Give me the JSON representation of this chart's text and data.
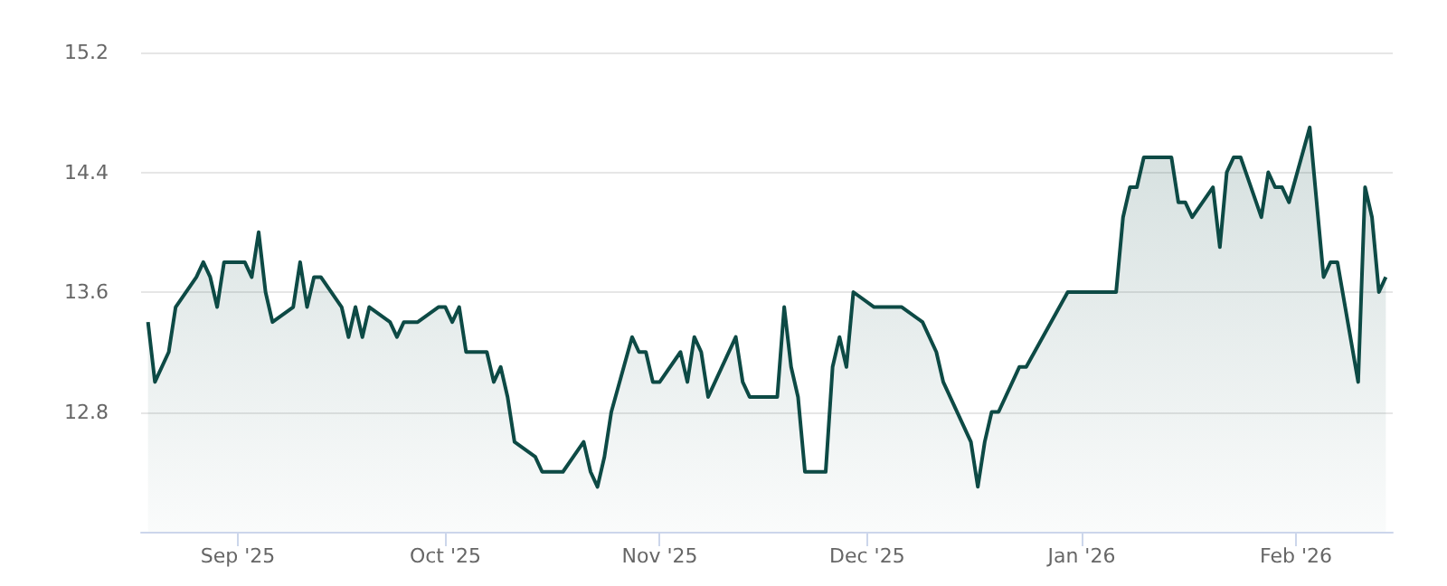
{
  "chart_data": {
    "type": "area",
    "x": [
      "2025-08-19",
      "2025-08-20",
      "2025-08-22",
      "2025-08-23",
      "2025-08-26",
      "2025-08-27",
      "2025-08-28",
      "2025-08-29",
      "2025-08-30",
      "2025-09-02",
      "2025-09-03",
      "2025-09-04",
      "2025-09-05",
      "2025-09-06",
      "2025-09-09",
      "2025-09-10",
      "2025-09-11",
      "2025-09-12",
      "2025-09-13",
      "2025-09-16",
      "2025-09-17",
      "2025-09-18",
      "2025-09-19",
      "2025-09-20",
      "2025-09-23",
      "2025-09-24",
      "2025-09-25",
      "2025-09-27",
      "2025-09-30",
      "2025-10-01",
      "2025-10-02",
      "2025-10-03",
      "2025-10-04",
      "2025-10-07",
      "2025-10-08",
      "2025-10-09",
      "2025-10-10",
      "2025-10-11",
      "2025-10-14",
      "2025-10-15",
      "2025-10-18",
      "2025-10-21",
      "2025-10-22",
      "2025-10-23",
      "2025-10-24",
      "2025-10-25",
      "2025-10-28",
      "2025-10-29",
      "2025-10-30",
      "2025-10-31",
      "2025-11-01",
      "2025-11-04",
      "2025-11-05",
      "2025-11-06",
      "2025-11-07",
      "2025-11-08",
      "2025-11-12",
      "2025-11-13",
      "2025-11-14",
      "2025-11-18",
      "2025-11-19",
      "2025-11-20",
      "2025-11-21",
      "2025-11-22",
      "2025-11-25",
      "2025-11-26",
      "2025-11-27",
      "2025-11-28",
      "2025-11-29",
      "2025-12-02",
      "2025-12-06",
      "2025-12-09",
      "2025-12-11",
      "2025-12-12",
      "2025-12-16",
      "2025-12-17",
      "2025-12-18",
      "2025-12-19",
      "2025-12-20",
      "2025-12-23",
      "2025-12-24",
      "2025-12-30",
      "2026-01-06",
      "2026-01-07",
      "2026-01-08",
      "2026-01-09",
      "2026-01-10",
      "2026-01-14",
      "2026-01-15",
      "2026-01-16",
      "2026-01-17",
      "2026-01-20",
      "2026-01-21",
      "2026-01-22",
      "2026-01-23",
      "2026-01-24",
      "2026-01-27",
      "2026-01-28",
      "2026-01-29",
      "2026-01-30",
      "2026-01-31",
      "2026-02-03",
      "2026-02-05",
      "2026-02-06",
      "2026-02-07",
      "2026-02-10",
      "2026-02-11",
      "2026-02-12",
      "2026-02-13",
      "2026-02-14"
    ],
    "series": [
      {
        "color": "#0d4a45",
        "values": [
          13.4,
          13.0,
          13.2,
          13.5,
          13.7,
          13.8,
          13.7,
          13.5,
          13.8,
          13.8,
          13.7,
          14.0,
          13.6,
          13.4,
          13.5,
          13.8,
          13.5,
          13.7,
          13.7,
          13.5,
          13.3,
          13.5,
          13.3,
          13.5,
          13.4,
          13.3,
          13.4,
          13.4,
          13.5,
          13.5,
          13.4,
          13.5,
          13.2,
          13.2,
          13.0,
          13.1,
          12.9,
          12.6,
          12.5,
          12.4,
          12.4,
          12.6,
          12.4,
          12.3,
          12.5,
          12.8,
          13.3,
          13.2,
          13.2,
          13.0,
          13.0,
          13.2,
          13.0,
          13.3,
          13.2,
          12.9,
          13.3,
          13.0,
          12.9,
          12.9,
          13.5,
          13.1,
          12.9,
          12.4,
          12.4,
          13.1,
          13.3,
          13.1,
          13.6,
          13.5,
          13.5,
          13.4,
          13.2,
          13.0,
          12.6,
          12.3,
          12.6,
          12.8,
          12.8,
          13.1,
          13.1,
          13.6,
          13.6,
          14.1,
          14.3,
          14.3,
          14.5,
          14.5,
          14.2,
          14.2,
          14.1,
          14.3,
          13.9,
          14.4,
          14.5,
          14.5,
          14.1,
          14.4,
          14.3,
          14.3,
          14.2,
          14.7,
          13.7,
          13.8,
          13.8,
          13.0,
          14.3,
          14.1,
          13.6,
          13.7
        ]
      }
    ],
    "xlim": [
      "2025-08-18",
      "2026-02-15"
    ],
    "xticks": [
      {
        "value": "2025-09-01",
        "label": "Sep '25"
      },
      {
        "value": "2025-10-01",
        "label": "Oct '25"
      },
      {
        "value": "2025-11-01",
        "label": "Nov '25"
      },
      {
        "value": "2025-12-01",
        "label": "Dec '25"
      },
      {
        "value": "2026-01-01",
        "label": "Jan '26"
      },
      {
        "value": "2026-02-01",
        "label": "Feb '26"
      }
    ],
    "ylim": [
      12,
      15.2
    ],
    "yticks": [
      12.8,
      13.6,
      14.4,
      15.2
    ],
    "grid": "y"
  }
}
